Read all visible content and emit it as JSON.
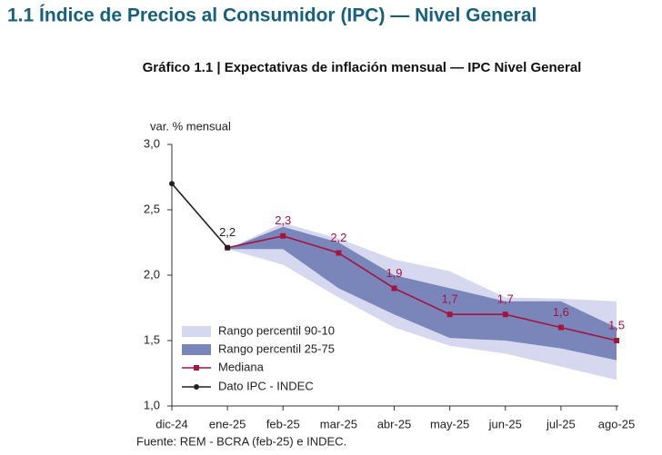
{
  "chart_data": {
    "type": "line",
    "header": "1.1 Índice de Precios al Consumidor (IPC) — Nivel General",
    "title": "Gráfico 1.1 | Expectativas de inflación mensual — IPC Nivel General",
    "ylabel": "var. % mensual",
    "source": "Fuente: REM - BCRA (feb-25) e INDEC.",
    "categories": [
      "dic-24",
      "ene-25",
      "feb-25",
      "mar-25",
      "abr-25",
      "may-25",
      "jun-25",
      "jul-25",
      "ago-25"
    ],
    "ylim": [
      1,
      3
    ],
    "yticks": [
      {
        "value": 1,
        "label": "1,0"
      },
      {
        "value": 1.5,
        "label": "1,5"
      },
      {
        "value": 2,
        "label": "2,0"
      },
      {
        "value": 2.5,
        "label": "2,5"
      },
      {
        "value": 3,
        "label": "3,0"
      }
    ],
    "bands": [
      {
        "name": "Rango percentil 90-10",
        "color": "#d5d8ee",
        "low": [
          null,
          2.2,
          2.08,
          1.83,
          1.6,
          1.46,
          1.4,
          1.3,
          1.2
        ],
        "high": [
          null,
          2.2,
          2.4,
          2.28,
          2.12,
          2.03,
          1.83,
          1.82,
          1.8
        ]
      },
      {
        "name": "Rango percentil 25-75",
        "color": "#7a86ba",
        "low": [
          null,
          2.2,
          2.2,
          1.9,
          1.7,
          1.52,
          1.5,
          1.44,
          1.35
        ],
        "high": [
          null,
          2.2,
          2.37,
          2.25,
          2.0,
          1.9,
          1.8,
          1.8,
          1.6
        ]
      }
    ],
    "series": [
      {
        "name": "Mediana",
        "color": "#a3143f",
        "marker": "square",
        "values": [
          null,
          2.21,
          2.3,
          2.17,
          1.9,
          1.7,
          1.7,
          1.6,
          1.5
        ],
        "value_labels": [
          null,
          null,
          "2,3",
          "2,2",
          "1,9",
          "1,7",
          "1,7",
          "1,6",
          "1,5"
        ]
      },
      {
        "name": "Dato IPC - INDEC",
        "color": "#222222",
        "marker": "circle",
        "values": [
          2.7,
          2.21,
          null,
          null,
          null,
          null,
          null,
          null,
          null
        ],
        "value_labels": [
          null,
          "2,2",
          null,
          null,
          null,
          null,
          null,
          null,
          null
        ]
      }
    ]
  }
}
